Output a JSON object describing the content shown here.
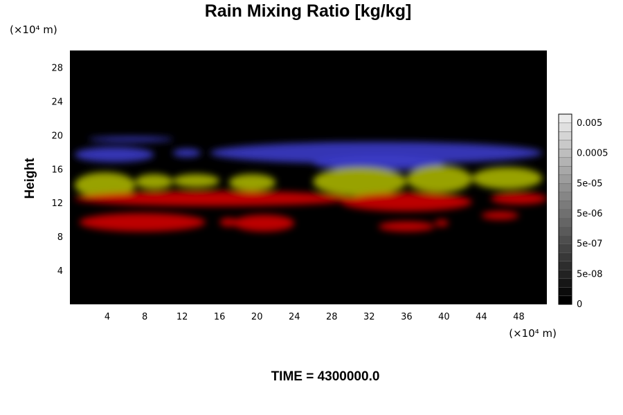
{
  "chart_data": {
    "type": "heatmap",
    "title": "Rain Mixing Ratio [kg/kg]",
    "ylabel": "Height",
    "x_unit": "(×10⁴ m)",
    "y_unit": "(×10⁴ m)",
    "time_label": "TIME = 4300000.0",
    "xlim": [
      0,
      51
    ],
    "ylim": [
      0,
      30
    ],
    "x_ticks": [
      "4",
      "8",
      "12",
      "16",
      "20",
      "24",
      "28",
      "32",
      "36",
      "40",
      "44",
      "48"
    ],
    "x_tick_values": [
      4,
      8,
      12,
      16,
      20,
      24,
      28,
      32,
      36,
      40,
      44,
      48
    ],
    "y_ticks": [
      "4",
      "8",
      "12",
      "16",
      "20",
      "24",
      "28"
    ],
    "y_tick_values": [
      4,
      8,
      12,
      16,
      20,
      24,
      28
    ],
    "colorbar": {
      "labels": [
        "0",
        "5e-08",
        "5e-07",
        "5e-06",
        "5e-05",
        "0.0005",
        "0.005"
      ],
      "levels": 22
    },
    "layers": [
      {
        "color": "#3a3ac8",
        "blobs": [
          {
            "x": [
              0.5,
              9
            ],
            "y": [
              16.8,
              18.6
            ]
          },
          {
            "x": [
              2,
              11
            ],
            "y": [
              19.2,
              19.8
            ]
          },
          {
            "x": [
              11,
              14
            ],
            "y": [
              17.4,
              18.4
            ]
          },
          {
            "x": [
              15,
              50.5
            ],
            "y": [
              16.6,
              19.2
            ]
          },
          {
            "x": [
              26,
              40
            ],
            "y": [
              15.8,
              17.6
            ]
          }
        ]
      },
      {
        "color": "#a8b400",
        "blobs": [
          {
            "x": [
              0.5,
              7
            ],
            "y": [
              12.6,
              15.6
            ]
          },
          {
            "x": [
              7,
              11
            ],
            "y": [
              13.6,
              15.4
            ]
          },
          {
            "x": [
              11,
              16
            ],
            "y": [
              13.8,
              15.4
            ]
          },
          {
            "x": [
              17,
              22
            ],
            "y": [
              13.4,
              15.4
            ]
          },
          {
            "x": [
              26,
              36
            ],
            "y": [
              12.8,
              16.2
            ]
          },
          {
            "x": [
              36,
              43
            ],
            "y": [
              13.2,
              16.4
            ]
          },
          {
            "x": [
              43,
              50.5
            ],
            "y": [
              13.6,
              16.2
            ]
          }
        ]
      },
      {
        "color": "#d00000",
        "blobs": [
          {
            "x": [
              0.5,
              30
            ],
            "y": [
              11.6,
              13.4
            ]
          },
          {
            "x": [
              29,
              43
            ],
            "y": [
              11.0,
              13.2
            ]
          },
          {
            "x": [
              45,
              51
            ],
            "y": [
              11.8,
              13.2
            ]
          },
          {
            "x": [
              1,
              14.5
            ],
            "y": [
              8.6,
              10.8
            ]
          },
          {
            "x": [
              16,
              18
            ],
            "y": [
              9.2,
              10.2
            ]
          },
          {
            "x": [
              17.5,
              24
            ],
            "y": [
              8.6,
              10.6
            ]
          },
          {
            "x": [
              33,
              39
            ],
            "y": [
              8.6,
              9.8
            ]
          },
          {
            "x": [
              39,
              40.5
            ],
            "y": [
              9.2,
              10.0
            ]
          },
          {
            "x": [
              44,
              48
            ],
            "y": [
              10.0,
              11.0
            ]
          }
        ]
      }
    ]
  }
}
